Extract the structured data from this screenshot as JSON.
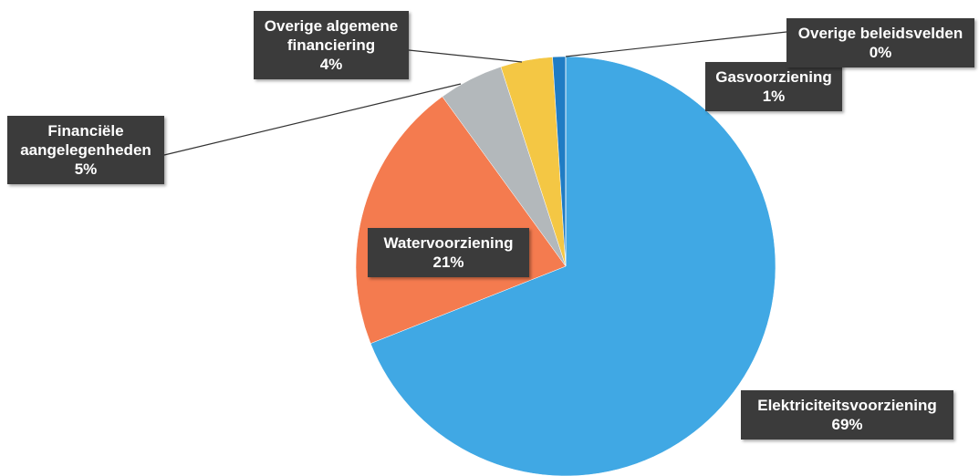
{
  "chart_data": {
    "type": "pie",
    "categories": [
      "Elektriciteitsvoorziening",
      "Watervoorziening",
      "Financiële aangelegenheden",
      "Overige algemene financiering",
      "Gasvoorziening",
      "Overige beleidsvelden"
    ],
    "values": [
      69,
      21,
      5,
      4,
      1,
      0
    ],
    "value_labels": [
      "69%",
      "21%",
      "5%",
      "4%",
      "1%",
      "0%"
    ],
    "colors": [
      "#40a8e4",
      "#f47b4f",
      "#b3b8bb",
      "#f4c744",
      "#1f7cc4",
      "#9a9a9a"
    ]
  }
}
